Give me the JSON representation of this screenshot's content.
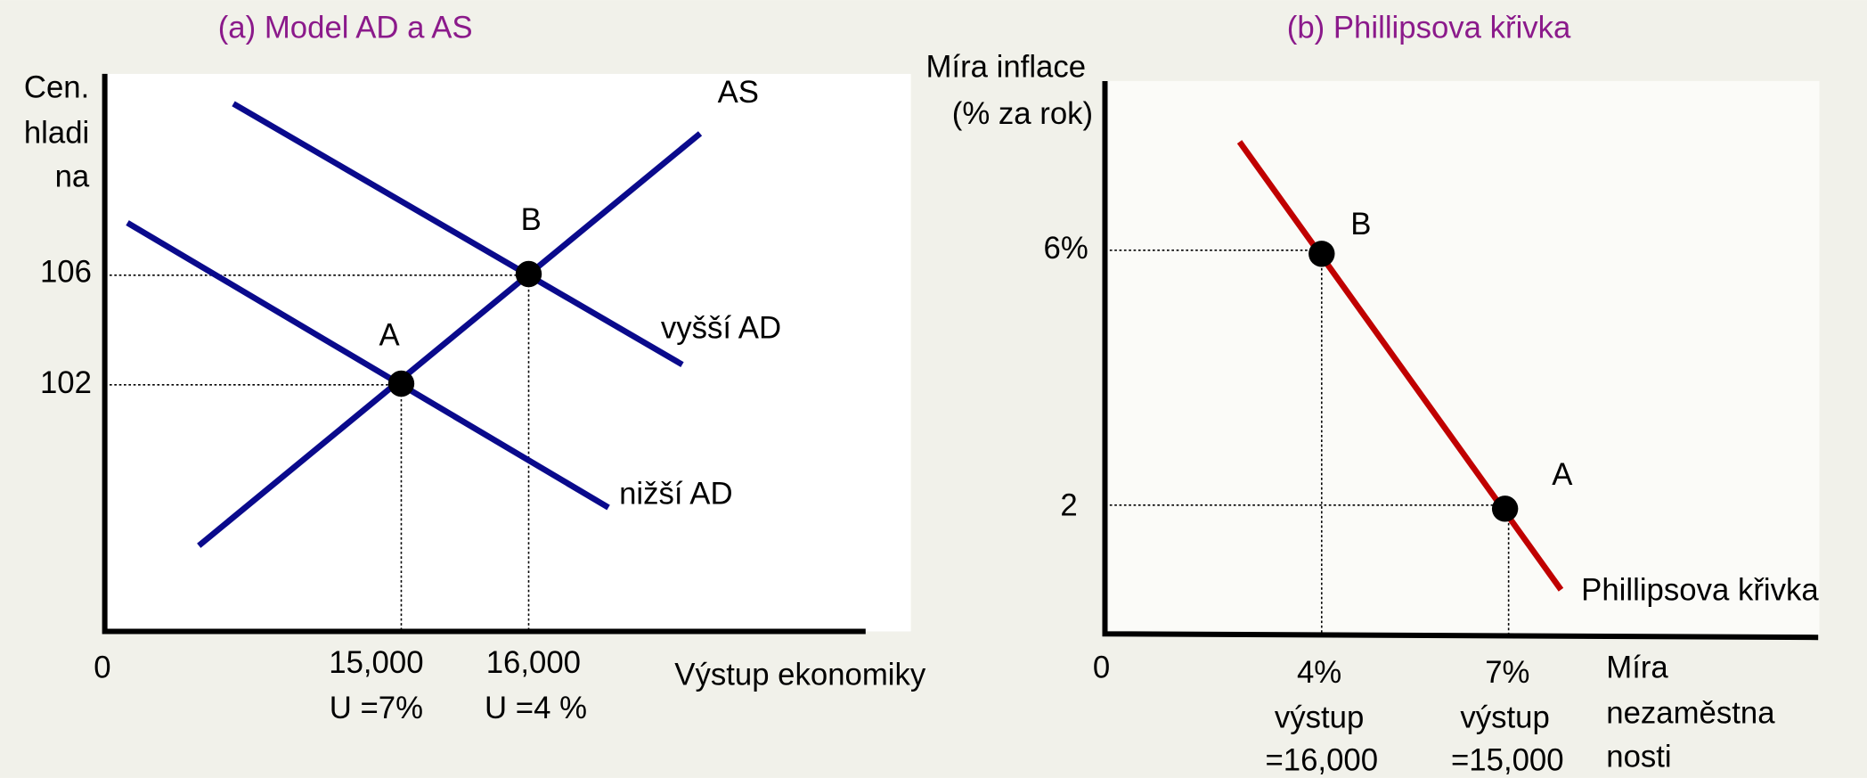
{
  "panel_a": {
    "title": "(a) Model AD a AS",
    "y_axis_label": [
      "Cen.",
      "hladi",
      "na"
    ],
    "y_labels": [
      "106",
      "102"
    ],
    "x_origin": "0",
    "x_labels": [
      [
        "15,000",
        "U =7%"
      ],
      [
        "16,000",
        "U =4 %"
      ]
    ],
    "x_axis_label": "Výstup ekonomiky",
    "curve_labels": {
      "as": "AS",
      "higher_ad": "vyšší AD",
      "lower_ad": "nižší AD"
    },
    "points": [
      "A",
      "B"
    ]
  },
  "panel_b": {
    "title": "(b) Phillipsova křivka",
    "y_axis_label": [
      "Míra inflace",
      "(% za rok)"
    ],
    "y_labels": [
      "6%",
      "2"
    ],
    "x_origin": "0",
    "x_labels": [
      [
        "4%",
        "výstup",
        "=16,000"
      ],
      [
        "7%",
        "výstup",
        "=15,000"
      ]
    ],
    "x_axis_label": [
      "Míra",
      "nezaměstna",
      "nosti"
    ],
    "curve_label": "Phillipsova křivka",
    "points": [
      "B",
      "A"
    ]
  }
}
